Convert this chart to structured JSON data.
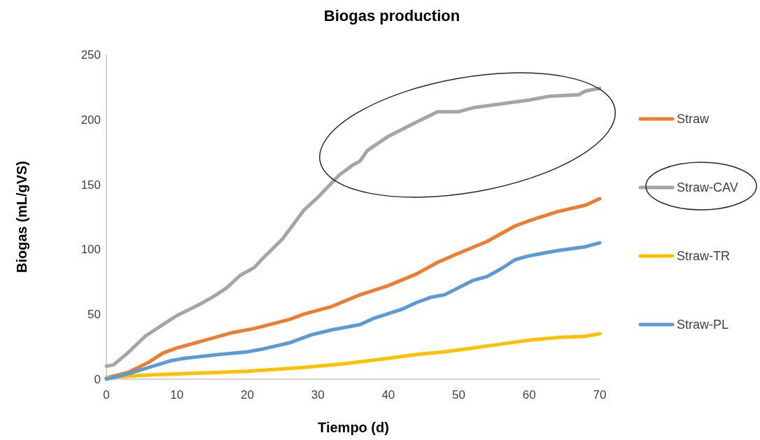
{
  "chart_data": {
    "type": "line",
    "title": "Biogas production",
    "xlabel": "Tiempo (d)",
    "ylabel": "Biogas (mL/gVS)",
    "xlim": [
      0,
      70
    ],
    "ylim": [
      0,
      250
    ],
    "xticks": [
      0,
      10,
      20,
      30,
      40,
      50,
      60,
      70
    ],
    "yticks": [
      0,
      50,
      100,
      150,
      200,
      250
    ],
    "grid": false,
    "legend": "right",
    "marker": "none",
    "line_style": "solid",
    "series": [
      {
        "name": "Straw",
        "color": "#ed7d31",
        "x": [
          0,
          3,
          6,
          8,
          10,
          14,
          18,
          21,
          26,
          28,
          32,
          36,
          40,
          44,
          47,
          50,
          54,
          58,
          60,
          64,
          68,
          70
        ],
        "values": [
          1,
          5,
          13,
          20,
          24,
          30,
          36,
          39,
          46,
          50,
          56,
          65,
          72,
          81,
          90,
          97,
          106,
          118,
          122,
          129,
          134,
          139
        ]
      },
      {
        "name": "Straw-CAV",
        "color": "#a5a5a5",
        "x": [
          0,
          1,
          3,
          5.5,
          8,
          10,
          13,
          15,
          17,
          19,
          21,
          22,
          25,
          28,
          30,
          33,
          35,
          36,
          37,
          40,
          44,
          47,
          50,
          52,
          56,
          60,
          63,
          67,
          68,
          70
        ],
        "values": [
          10,
          11,
          20,
          33,
          42,
          49,
          57,
          63,
          70,
          80,
          86,
          92,
          108,
          130,
          140,
          157,
          165,
          168,
          176,
          187,
          198,
          206,
          206,
          209,
          212,
          215,
          218,
          219,
          222,
          224
        ]
      },
      {
        "name": "Straw-TR",
        "color": "#ffc000",
        "x": [
          0,
          5,
          10,
          20,
          28,
          34,
          40,
          44,
          48,
          52,
          56,
          60,
          64,
          68,
          70
        ],
        "values": [
          1,
          3,
          4,
          6,
          9,
          12,
          16,
          19,
          21,
          24,
          27,
          30,
          32,
          33,
          35
        ]
      },
      {
        "name": "Straw-PL",
        "color": "#5b9bd5",
        "x": [
          0,
          3,
          6,
          9,
          11,
          16,
          20,
          22,
          26,
          29,
          32,
          36,
          38,
          42,
          44,
          46,
          48,
          52,
          54,
          56,
          58,
          60,
          64,
          68,
          70
        ],
        "values": [
          0,
          4,
          9,
          14,
          16,
          19,
          21,
          23,
          28,
          34,
          38,
          42,
          47,
          54,
          59,
          63,
          65,
          76,
          79,
          85,
          92,
          95,
          99,
          102,
          105
        ]
      }
    ]
  }
}
